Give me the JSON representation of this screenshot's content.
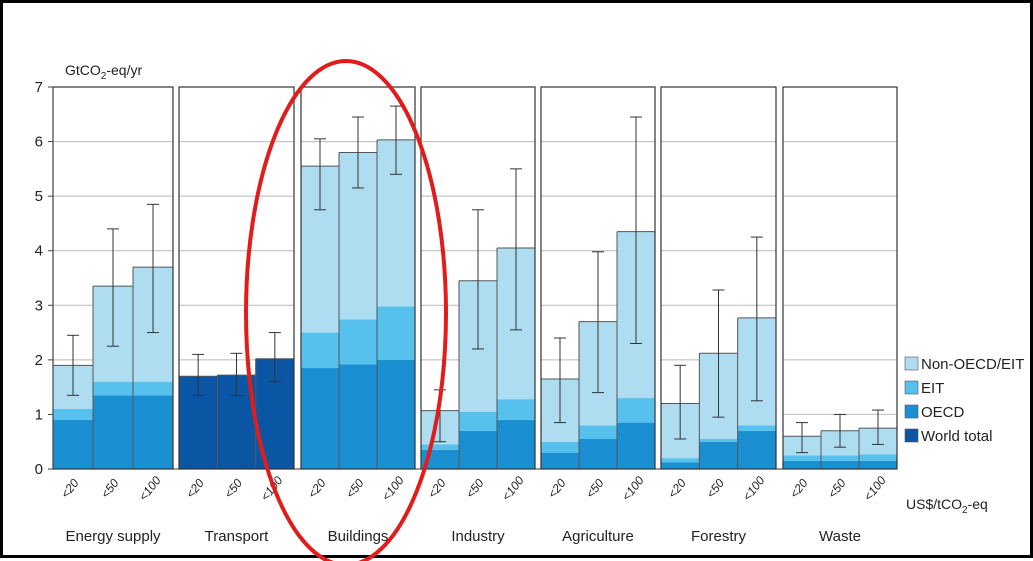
{
  "chart_data": {
    "type": "bar",
    "ylabel_main": "GtCO",
    "ylabel_sub": "2",
    "ylabel_tail": "-eq/yr",
    "xunit_main": "US$/tCO",
    "xunit_sub": "2",
    "xunit_tail": "-eq",
    "ylim": [
      0,
      7
    ],
    "yticks": [
      "0",
      "1",
      "2",
      "3",
      "4",
      "5",
      "6",
      "7"
    ],
    "grid": true,
    "legend_position": "right",
    "colors": {
      "non_oecd_eit": "#aedcf0",
      "eit": "#55c1ec",
      "oecd": "#1a8fd2",
      "world_total": "#0a56a4",
      "highlight": "#e21b1b"
    },
    "legend": [
      {
        "label": "Non-OECD/EIT",
        "key": "non_oecd_eit"
      },
      {
        "label": "EIT",
        "key": "eit"
      },
      {
        "label": "OECD",
        "key": "oecd"
      },
      {
        "label": "World total",
        "key": "world_total"
      }
    ],
    "price_labels": [
      "<20",
      "<50",
      "<100"
    ],
    "highlighted_sector": "Buildings",
    "sectors": [
      {
        "name": "Energy supply",
        "bars": [
          {
            "oecd": 0.9,
            "eit": 0.2,
            "non_oecd": 0.8,
            "total": 1.9,
            "err": [
              1.35,
              2.45
            ]
          },
          {
            "oecd": 1.35,
            "eit": 0.25,
            "non_oecd": 1.75,
            "total": 3.35,
            "err": [
              2.25,
              4.4
            ]
          },
          {
            "oecd": 1.35,
            "eit": 0.25,
            "non_oecd": 2.1,
            "total": 3.7,
            "err": [
              2.5,
              4.85
            ]
          }
        ]
      },
      {
        "name": "Transport",
        "bars": [
          {
            "world": 1.7,
            "total": 1.7,
            "err": [
              1.35,
              2.1
            ]
          },
          {
            "world": 1.72,
            "total": 1.72,
            "err": [
              1.35,
              2.12
            ]
          },
          {
            "world": 2.02,
            "total": 2.02,
            "err": [
              1.6,
              2.5
            ]
          }
        ]
      },
      {
        "name": "Buildings",
        "bars": [
          {
            "oecd": 1.85,
            "eit": 0.65,
            "non_oecd": 3.05,
            "total": 5.55,
            "err": [
              4.75,
              6.05
            ]
          },
          {
            "oecd": 1.92,
            "eit": 0.82,
            "non_oecd": 3.06,
            "total": 5.8,
            "err": [
              5.15,
              6.45
            ]
          },
          {
            "oecd": 2.0,
            "eit": 0.98,
            "non_oecd": 3.05,
            "total": 6.03,
            "err": [
              5.4,
              6.65
            ]
          }
        ]
      },
      {
        "name": "Industry",
        "bars": [
          {
            "oecd": 0.35,
            "eit": 0.1,
            "non_oecd": 0.62,
            "total": 1.07,
            "err": [
              0.5,
              1.45
            ]
          },
          {
            "oecd": 0.7,
            "eit": 0.35,
            "non_oecd": 2.4,
            "total": 3.45,
            "err": [
              2.2,
              4.75
            ]
          },
          {
            "oecd": 0.9,
            "eit": 0.38,
            "non_oecd": 2.77,
            "total": 4.05,
            "err": [
              2.55,
              5.5
            ]
          }
        ]
      },
      {
        "name": "Agriculture",
        "bars": [
          {
            "oecd": 0.3,
            "eit": 0.2,
            "non_oecd": 1.15,
            "total": 1.65,
            "err": [
              0.85,
              2.4
            ]
          },
          {
            "oecd": 0.55,
            "eit": 0.25,
            "non_oecd": 1.9,
            "total": 2.7,
            "err": [
              1.4,
              3.98
            ]
          },
          {
            "oecd": 0.85,
            "eit": 0.45,
            "non_oecd": 3.05,
            "total": 4.35,
            "err": [
              2.3,
              6.45
            ]
          }
        ]
      },
      {
        "name": "Forestry",
        "bars": [
          {
            "oecd": 0.12,
            "eit": 0.08,
            "non_oecd": 1.0,
            "total": 1.2,
            "err": [
              0.55,
              1.9
            ]
          },
          {
            "oecd": 0.5,
            "eit": 0.05,
            "non_oecd": 1.57,
            "total": 2.12,
            "err": [
              0.95,
              3.28
            ]
          },
          {
            "oecd": 0.7,
            "eit": 0.1,
            "non_oecd": 1.97,
            "total": 2.77,
            "err": [
              1.25,
              4.25
            ]
          }
        ]
      },
      {
        "name": "Waste",
        "bars": [
          {
            "oecd": 0.15,
            "eit": 0.1,
            "non_oecd": 0.35,
            "total": 0.6,
            "err": [
              0.3,
              0.85
            ]
          },
          {
            "oecd": 0.15,
            "eit": 0.1,
            "non_oecd": 0.45,
            "total": 0.7,
            "err": [
              0.4,
              1.0
            ]
          },
          {
            "oecd": 0.15,
            "eit": 0.12,
            "non_oecd": 0.48,
            "total": 0.75,
            "err": [
              0.45,
              1.08
            ]
          }
        ]
      }
    ]
  }
}
